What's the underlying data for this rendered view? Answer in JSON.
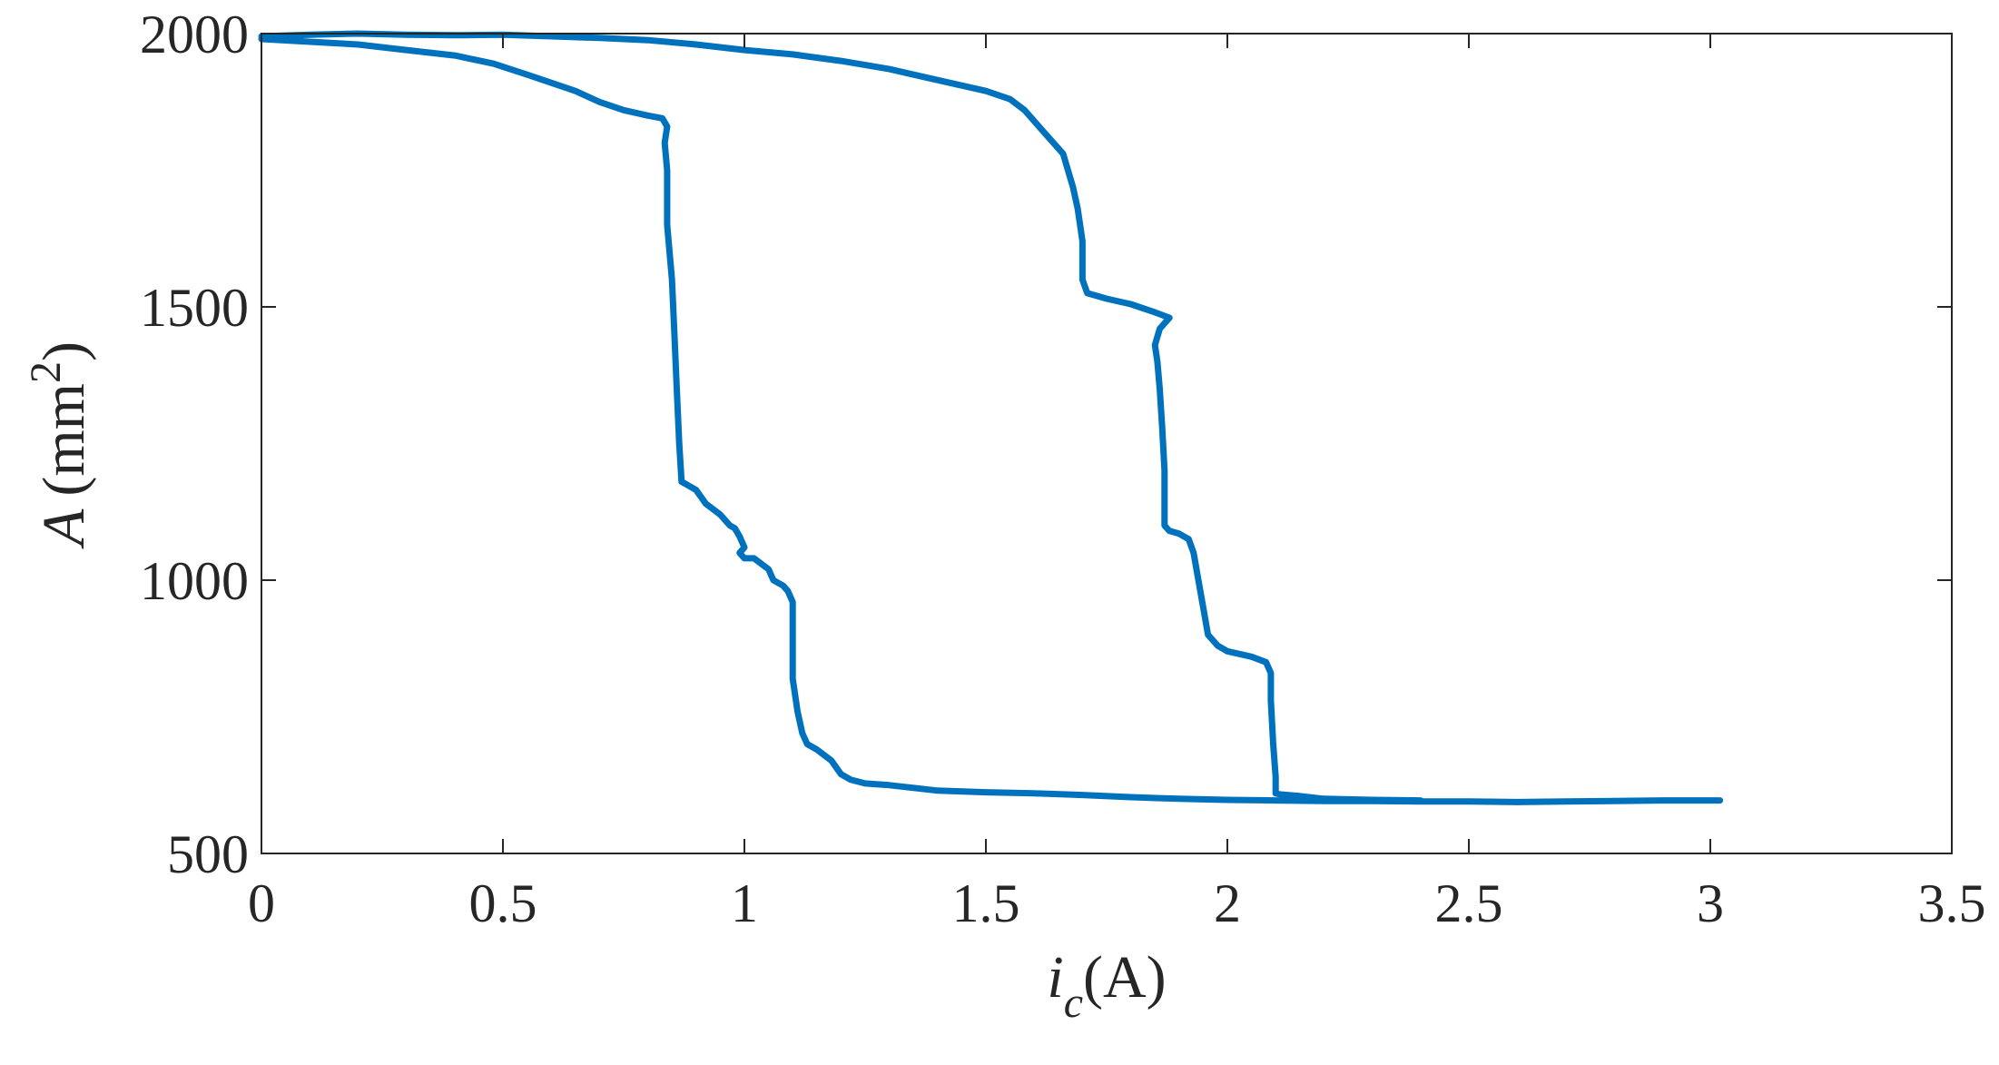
{
  "chart_data": {
    "type": "line",
    "xlabel": {
      "var": "i",
      "sub": "c",
      "unit": "(A)"
    },
    "ylabel": {
      "var": "A",
      "unit_pre": "(mm",
      "sup": "2",
      "unit_post": ")"
    },
    "xlim": [
      0,
      3.5
    ],
    "ylim": [
      500,
      2000
    ],
    "xticks": [
      0,
      0.5,
      1,
      1.5,
      2,
      2.5,
      3,
      3.5
    ],
    "xtick_labels": [
      "0",
      "0.5",
      "1",
      "1.5",
      "2",
      "2.5",
      "3",
      "3.5"
    ],
    "yticks": [
      500,
      1000,
      1500,
      2000
    ],
    "ytick_labels": [
      "500",
      "1000",
      "1500",
      "2000"
    ],
    "grid": false,
    "line_color": "#0072BD",
    "series": [
      {
        "x": [
          0.0,
          0.1,
          0.2,
          0.3,
          0.4,
          0.48,
          0.55,
          0.6,
          0.65,
          0.7,
          0.75,
          0.8,
          0.83,
          0.84,
          0.835,
          0.84,
          0.84,
          0.85,
          0.855,
          0.86,
          0.865,
          0.87,
          0.88,
          0.9,
          0.92,
          0.95,
          0.97,
          0.98,
          0.99,
          1.0,
          0.99,
          1.0,
          1.02,
          1.05,
          1.06,
          1.07,
          1.08,
          1.09,
          1.1,
          1.1,
          1.1,
          1.11,
          1.12,
          1.13,
          1.15,
          1.18,
          1.2,
          1.22,
          1.25,
          1.3,
          1.4,
          1.5,
          1.6,
          1.7,
          1.8,
          1.9,
          2.0,
          2.1,
          2.2,
          2.3,
          2.4,
          2.5,
          2.6,
          2.7,
          2.8,
          2.9,
          3.02
        ],
        "y": [
          1990,
          1985,
          1980,
          1970,
          1960,
          1945,
          1925,
          1910,
          1895,
          1875,
          1860,
          1850,
          1845,
          1830,
          1800,
          1750,
          1650,
          1550,
          1450,
          1350,
          1250,
          1180,
          1175,
          1165,
          1140,
          1120,
          1100,
          1095,
          1080,
          1060,
          1050,
          1040,
          1040,
          1020,
          1000,
          995,
          990,
          980,
          960,
          900,
          820,
          760,
          720,
          700,
          690,
          670,
          645,
          635,
          628,
          625,
          615,
          612,
          610,
          607,
          603,
          600,
          598,
          597,
          596,
          596,
          595,
          595,
          594,
          595,
          596,
          597,
          597
        ]
      },
      {
        "x": [
          0.0,
          0.1,
          0.2,
          0.3,
          0.4,
          0.5,
          0.6,
          0.7,
          0.8,
          0.9,
          1.0,
          1.1,
          1.2,
          1.3,
          1.4,
          1.5,
          1.55,
          1.58,
          1.6,
          1.62,
          1.64,
          1.66,
          1.67,
          1.68,
          1.69,
          1.7,
          1.7,
          1.71,
          1.75,
          1.8,
          1.85,
          1.88,
          1.86,
          1.85,
          1.855,
          1.86,
          1.865,
          1.87,
          1.87,
          1.87,
          1.88,
          1.9,
          1.92,
          1.93,
          1.94,
          1.95,
          1.96,
          1.98,
          2.0,
          2.05,
          2.08,
          2.09,
          2.09,
          2.095,
          2.1,
          2.1,
          2.11,
          2.15,
          2.2,
          2.3,
          2.4
        ],
        "y": [
          1995,
          1998,
          2000,
          1998,
          1997,
          1998,
          1995,
          1992,
          1988,
          1980,
          1970,
          1962,
          1950,
          1935,
          1915,
          1895,
          1880,
          1860,
          1840,
          1820,
          1800,
          1780,
          1750,
          1720,
          1680,
          1620,
          1550,
          1525,
          1515,
          1505,
          1490,
          1480,
          1460,
          1430,
          1400,
          1350,
          1280,
          1200,
          1150,
          1100,
          1090,
          1085,
          1075,
          1050,
          1000,
          950,
          900,
          880,
          870,
          860,
          850,
          830,
          780,
          700,
          640,
          610,
          608,
          605,
          600,
          598,
          597
        ]
      }
    ]
  }
}
